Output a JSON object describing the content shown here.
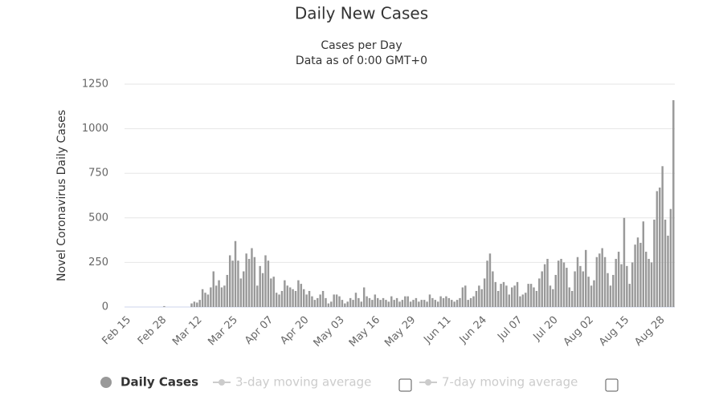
{
  "chart_data": {
    "type": "bar",
    "title": "Daily New Cases",
    "subtitle": "Cases per Day",
    "subtitle2": "Data as of 0:00 GMT+0",
    "y_label": "Novel Coronavirus Daily Cases",
    "categories": [
      "Feb 15",
      null,
      null,
      null,
      null,
      null,
      null,
      null,
      null,
      null,
      null,
      null,
      null,
      "Feb 28",
      null,
      null,
      null,
      null,
      null,
      null,
      null,
      null,
      null,
      null,
      null,
      null,
      "Mar 12",
      null,
      null,
      null,
      null,
      null,
      null,
      null,
      null,
      null,
      null,
      null,
      null,
      "Mar 25",
      null,
      null,
      null,
      null,
      null,
      null,
      null,
      null,
      null,
      null,
      null,
      null,
      "Apr 07",
      null,
      null,
      null,
      null,
      null,
      null,
      null,
      null,
      null,
      null,
      null,
      null,
      "Apr 20",
      null,
      null,
      null,
      null,
      null,
      null,
      null,
      null,
      null,
      null,
      null,
      null,
      "May 03",
      null,
      null,
      null,
      null,
      null,
      null,
      null,
      null,
      null,
      null,
      null,
      null,
      "May 16",
      null,
      null,
      null,
      null,
      null,
      null,
      null,
      null,
      null,
      null,
      null,
      null,
      "May 29",
      null,
      null,
      null,
      null,
      null,
      null,
      null,
      null,
      null,
      null,
      null,
      null,
      "Jun 11",
      null,
      null,
      null,
      null,
      null,
      null,
      null,
      null,
      null,
      null,
      null,
      null,
      "Jun 24",
      null,
      null,
      null,
      null,
      null,
      null,
      null,
      null,
      null,
      null,
      null,
      null,
      "Jul 07",
      null,
      null,
      null,
      null,
      null,
      null,
      null,
      null,
      null,
      null,
      null,
      null,
      "Jul 20",
      null,
      null,
      null,
      null,
      null,
      null,
      null,
      null,
      null,
      null,
      null,
      null,
      "Aug 02",
      null,
      null,
      null,
      null,
      null,
      null,
      null,
      null,
      null,
      null,
      null,
      null,
      "Aug 15",
      null,
      null,
      null,
      null,
      null,
      null,
      null,
      null,
      null,
      null,
      null,
      null,
      "Aug 28",
      null,
      null,
      null,
      null,
      null
    ],
    "series": [
      {
        "name": "Daily Cases",
        "color": "#999999",
        "values": [
          0,
          0,
          0,
          0,
          0,
          0,
          0,
          0,
          0,
          0,
          0,
          0,
          0,
          0,
          5,
          0,
          0,
          0,
          0,
          0,
          0,
          0,
          0,
          0,
          20,
          30,
          25,
          40,
          100,
          80,
          70,
          110,
          200,
          120,
          150,
          110,
          120,
          180,
          290,
          260,
          370,
          260,
          160,
          200,
          300,
          270,
          330,
          280,
          120,
          230,
          190,
          290,
          260,
          160,
          170,
          80,
          70,
          90,
          150,
          120,
          110,
          100,
          90,
          150,
          130,
          100,
          70,
          90,
          60,
          40,
          50,
          70,
          90,
          50,
          20,
          30,
          70,
          70,
          60,
          40,
          20,
          30,
          50,
          40,
          80,
          50,
          30,
          110,
          60,
          50,
          40,
          70,
          50,
          40,
          50,
          40,
          30,
          60,
          40,
          50,
          30,
          40,
          60,
          60,
          30,
          40,
          50,
          30,
          40,
          40,
          30,
          70,
          50,
          40,
          30,
          60,
          50,
          60,
          50,
          40,
          30,
          40,
          50,
          110,
          120,
          40,
          50,
          60,
          90,
          120,
          100,
          160,
          260,
          300,
          200,
          140,
          90,
          130,
          140,
          120,
          70,
          110,
          120,
          140,
          60,
          70,
          80,
          130,
          130,
          110,
          90,
          160,
          200,
          240,
          270,
          120,
          100,
          180,
          260,
          270,
          250,
          220,
          110,
          90,
          200,
          280,
          230,
          200,
          320,
          170,
          120,
          150,
          280,
          300,
          330,
          280,
          190,
          120,
          180,
          270,
          310,
          240,
          500,
          230,
          130,
          250,
          350,
          390,
          360,
          480,
          310,
          270,
          250,
          490,
          650,
          670,
          790,
          490,
          400,
          550,
          1160
        ]
      }
    ],
    "legend_extra": [
      "3-day moving average",
      "7-day moving average"
    ],
    "ylim": [
      0,
      1250
    ],
    "yticks": [
      0,
      250,
      500,
      750,
      1000,
      1250
    ],
    "grid": true
  }
}
